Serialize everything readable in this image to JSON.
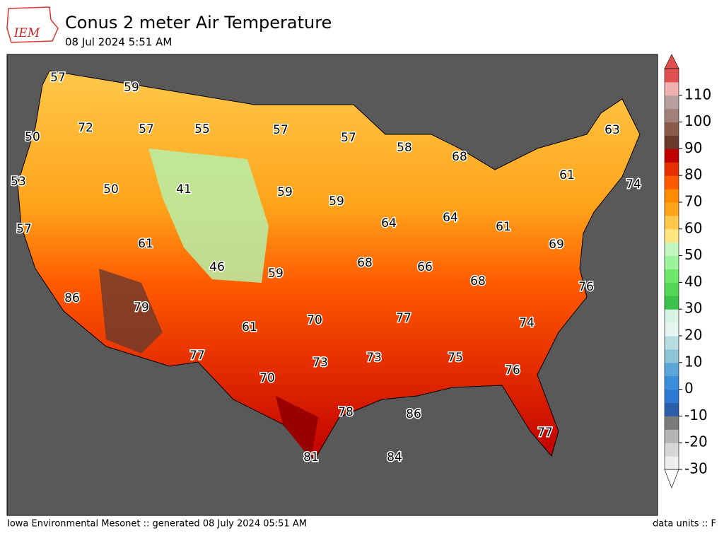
{
  "header": {
    "logo_text": "IEM",
    "title": "Conus 2 meter Air Temperature",
    "subtitle": "08 Jul 2024 5:51 AM"
  },
  "stations": [
    57,
    59,
    72,
    57,
    55,
    57,
    57,
    50,
    58,
    68,
    63,
    61,
    74,
    53,
    41,
    50,
    59,
    59,
    64,
    64,
    61,
    57,
    61,
    69,
    46,
    59,
    68,
    66,
    68,
    76,
    86,
    79,
    70,
    77,
    74,
    61,
    73,
    75,
    77,
    73,
    76,
    70,
    78,
    86,
    77,
    81,
    84
  ],
  "colorbar": {
    "limits": [
      -30,
      120
    ],
    "ticks": [
      -30,
      -20,
      -10,
      0,
      10,
      20,
      30,
      40,
      50,
      60,
      70,
      80,
      90,
      100,
      110
    ],
    "colors": [
      "#eeeeee",
      "#d6d6d6",
      "#b5b5b5",
      "#7a7a7a",
      "#2a5ea8",
      "#2f78d4",
      "#3a8fdc",
      "#5aa6d8",
      "#8ec4d6",
      "#b8dde0",
      "#e6f5f0",
      "#d9f2e6",
      "#3cc24a",
      "#56d657",
      "#6ee86b",
      "#9cf49a",
      "#c2f7c0",
      "#ffe680",
      "#ffc84a",
      "#ffa31a",
      "#ff8c00",
      "#ff5a00",
      "#e63000",
      "#c00000",
      "#6b3a2e",
      "#8a5a4a",
      "#a08078",
      "#b8a0a0",
      "#f0b0b0",
      "#e05050"
    ]
  },
  "footer": {
    "left": "Iowa Environmental Mesonet :: generated 08 July 2024 05:51 AM",
    "right": "data units :: F"
  }
}
